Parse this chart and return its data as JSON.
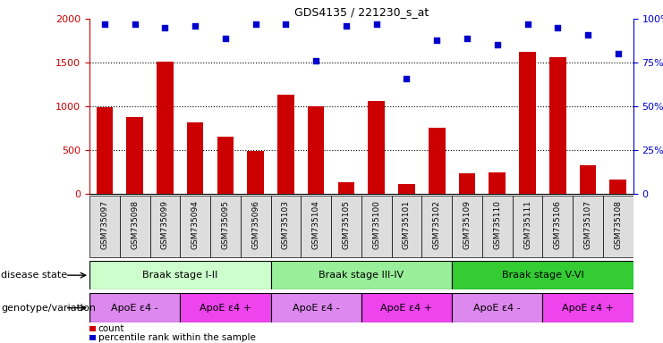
{
  "title": "GDS4135 / 221230_s_at",
  "samples": [
    "GSM735097",
    "GSM735098",
    "GSM735099",
    "GSM735094",
    "GSM735095",
    "GSM735096",
    "GSM735103",
    "GSM735104",
    "GSM735105",
    "GSM735100",
    "GSM735101",
    "GSM735102",
    "GSM735109",
    "GSM735110",
    "GSM735111",
    "GSM735106",
    "GSM735107",
    "GSM735108"
  ],
  "counts": [
    990,
    880,
    1510,
    820,
    650,
    490,
    1130,
    1000,
    130,
    1060,
    110,
    760,
    230,
    245,
    1620,
    1560,
    330,
    165
  ],
  "percentiles": [
    97,
    97,
    95,
    96,
    89,
    97,
    97,
    76,
    96,
    97,
    66,
    88,
    89,
    85,
    97,
    95,
    91,
    80
  ],
  "ylim_left": [
    0,
    2000
  ],
  "ylim_right": [
    0,
    100
  ],
  "yticks_left": [
    0,
    500,
    1000,
    1500,
    2000
  ],
  "yticks_right": [
    0,
    25,
    50,
    75,
    100
  ],
  "bar_color": "#cc0000",
  "dot_color": "#0000cc",
  "disease_state_groups": [
    {
      "label": "Braak stage I-II",
      "start": 0,
      "end": 6,
      "color": "#ccffcc"
    },
    {
      "label": "Braak stage III-IV",
      "start": 6,
      "end": 12,
      "color": "#99ee99"
    },
    {
      "label": "Braak stage V-VI",
      "start": 12,
      "end": 18,
      "color": "#33cc33"
    }
  ],
  "genotype_groups": [
    {
      "label": "ApoE ε4 -",
      "start": 0,
      "end": 3,
      "color": "#dd88ee"
    },
    {
      "label": "ApoE ε4 +",
      "start": 3,
      "end": 6,
      "color": "#ee44ee"
    },
    {
      "label": "ApoE ε4 -",
      "start": 6,
      "end": 9,
      "color": "#dd88ee"
    },
    {
      "label": "ApoE ε4 +",
      "start": 9,
      "end": 12,
      "color": "#ee44ee"
    },
    {
      "label": "ApoE ε4 -",
      "start": 12,
      "end": 15,
      "color": "#dd88ee"
    },
    {
      "label": "ApoE ε4 +",
      "start": 15,
      "end": 18,
      "color": "#ee44ee"
    }
  ],
  "disease_label": "disease state",
  "genotype_label": "genotype/variation",
  "legend_count": "count",
  "legend_percentile": "percentile rank within the sample",
  "bar_width": 0.55,
  "xtick_bg": "#dddddd"
}
